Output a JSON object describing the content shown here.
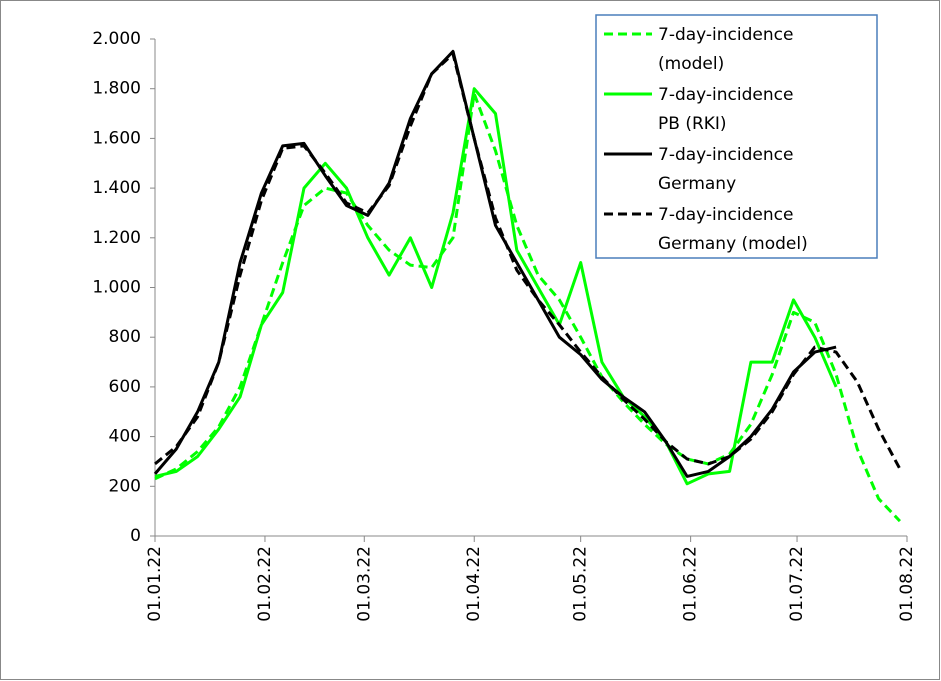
{
  "chart_data": {
    "type": "line",
    "x": [
      "01.01.22",
      "07.01.22",
      "13.01.22",
      "19.01.22",
      "25.01.22",
      "31.01.22",
      "06.02.22",
      "12.02.22",
      "18.02.22",
      "24.02.22",
      "02.03.22",
      "08.03.22",
      "14.03.22",
      "20.03.22",
      "26.03.22",
      "01.04.22",
      "07.04.22",
      "13.04.22",
      "19.04.22",
      "25.04.22",
      "01.05.22",
      "07.05.22",
      "13.05.22",
      "19.05.22",
      "25.05.22",
      "31.05.22",
      "06.06.22",
      "12.06.22",
      "18.06.22",
      "24.06.22",
      "30.06.22",
      "06.07.22",
      "12.07.22",
      "18.07.22",
      "24.07.22",
      "30.07.22"
    ],
    "series": [
      {
        "name": "7-day-incidence (model)",
        "color": "#00ff00",
        "dashed": true,
        "values": [
          230,
          270,
          340,
          440,
          600,
          850,
          1100,
          1330,
          1400,
          1380,
          1250,
          1150,
          1090,
          1080,
          1200,
          1780,
          1550,
          1250,
          1050,
          950,
          800,
          640,
          540,
          450,
          370,
          310,
          290,
          330,
          450,
          650,
          900,
          860,
          650,
          350,
          150,
          60
        ]
      },
      {
        "name": "7-day-incidence PB (RKI)",
        "color": "#00ff00",
        "dashed": false,
        "values": [
          240,
          260,
          320,
          430,
          560,
          850,
          980,
          1400,
          1500,
          1400,
          1200,
          1050,
          1200,
          1000,
          1300,
          1800,
          1700,
          1150,
          1000,
          850,
          1100,
          700,
          560,
          480,
          380,
          210,
          250,
          260,
          700,
          700,
          950,
          800,
          600,
          null,
          null,
          null
        ]
      },
      {
        "name": "7-day-incidence Germany",
        "color": "#000000",
        "dashed": false,
        "values": [
          250,
          350,
          500,
          700,
          1100,
          1380,
          1570,
          1580,
          1450,
          1330,
          1290,
          1420,
          1680,
          1860,
          1950,
          1600,
          1250,
          1100,
          950,
          800,
          730,
          630,
          560,
          500,
          380,
          240,
          260,
          320,
          400,
          510,
          660,
          740,
          760,
          null,
          null,
          null
        ]
      },
      {
        "name": "7-day-incidence Germany (model)",
        "color": "#000000",
        "dashed": true,
        "values": [
          290,
          360,
          480,
          700,
          1050,
          1350,
          1560,
          1570,
          1460,
          1340,
          1300,
          1410,
          1650,
          1860,
          1940,
          1600,
          1280,
          1070,
          950,
          850,
          740,
          640,
          550,
          470,
          380,
          310,
          290,
          320,
          390,
          500,
          650,
          760,
          740,
          620,
          430,
          270
        ]
      }
    ],
    "xlim": [
      "01.01.22",
      "01.08.22"
    ],
    "xticks": [
      "01.01.22",
      "01.02.22",
      "01.03.22",
      "01.04.22",
      "01.05.22",
      "01.06.22",
      "01.07.22",
      "01.08.22"
    ],
    "ylim": [
      0,
      2000
    ],
    "yticks": [
      0,
      200,
      400,
      600,
      800,
      {
        "value": 1000,
        "label": "1.000"
      },
      {
        "value": 1200,
        "label": "1.200"
      },
      {
        "value": 1400,
        "label": "1.400"
      },
      {
        "value": 1600,
        "label": "1.600"
      },
      {
        "value": 1800,
        "label": "1.800"
      },
      {
        "value": 2000,
        "label": "2.000"
      }
    ],
    "legend": "top-right"
  }
}
